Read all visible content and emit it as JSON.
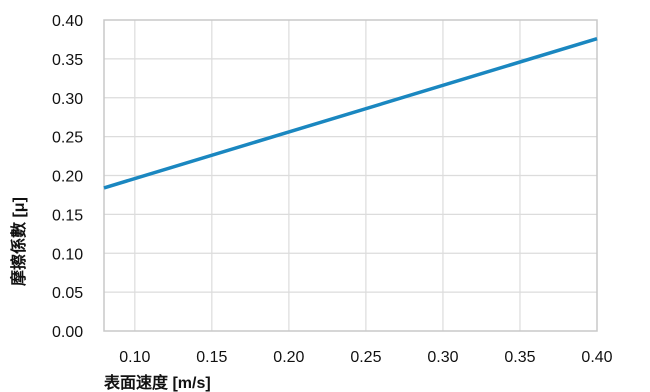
{
  "chart_data": {
    "type": "line",
    "title": "",
    "xlabel": "表面速度 [m/s]",
    "ylabel": "摩擦係數 [μ]",
    "xlim": [
      0.08,
      0.4
    ],
    "ylim": [
      0.0,
      0.4
    ],
    "x_ticks": [
      "0.10",
      "0.15",
      "0.20",
      "0.25",
      "0.30",
      "0.35",
      "0.40"
    ],
    "y_ticks": [
      "0.00",
      "0.05",
      "0.10",
      "0.15",
      "0.20",
      "0.25",
      "0.30",
      "0.35",
      "0.40"
    ],
    "grid": true,
    "legend": "none",
    "series": [
      {
        "x": [
          0.08,
          0.4
        ],
        "y": [
          0.184,
          0.376
        ],
        "color": "#1a87c0"
      }
    ]
  }
}
